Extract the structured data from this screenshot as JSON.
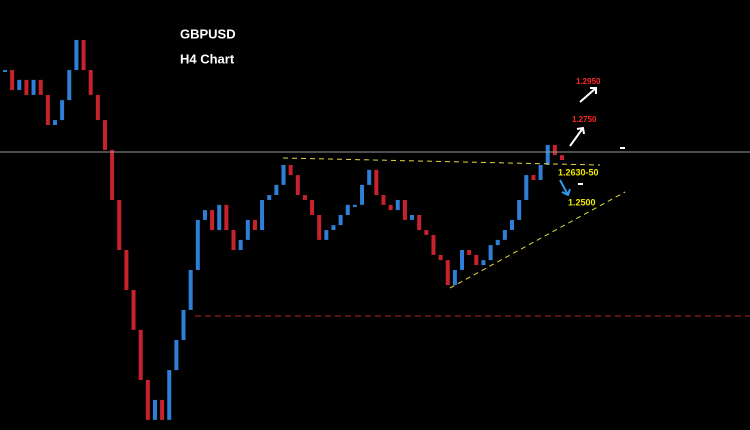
{
  "chart_data": {
    "type": "candlestick",
    "title": "GBPUSD",
    "subtitle": "H4 Chart",
    "ylim": [
      1.18,
      1.32
    ],
    "up_color": "#2f7fd8",
    "down_color": "#c8232c",
    "values": [
      1.2972,
      1.2907,
      1.294,
      1.2891,
      1.294,
      1.2891,
      1.2793,
      1.2809,
      1.2874,
      1.2972,
      1.307,
      1.2972,
      1.2891,
      1.2809,
      1.2712,
      1.2549,
      1.2386,
      1.2256,
      1.2126,
      1.1963,
      1.1833,
      1.1898,
      1.1833,
      1.1995,
      1.2093,
      1.2191,
      1.2321,
      1.2484,
      1.2516,
      1.2451,
      1.2533,
      1.2451,
      1.2386,
      1.2419,
      1.2484,
      1.2451,
      1.2549,
      1.2565,
      1.2598,
      1.2663,
      1.263,
      1.2565,
      1.2549,
      1.25,
      1.2419,
      1.2451,
      1.2467,
      1.25,
      1.2533,
      1.2533,
      1.2598,
      1.2647,
      1.2565,
      1.2533,
      1.2516,
      1.2549,
      1.2484,
      1.25,
      1.2451,
      1.2435,
      1.237,
      1.2353,
      1.2272,
      1.2321,
      1.2386,
      1.237,
      1.2337,
      1.2353,
      1.2402,
      1.2419,
      1.2451,
      1.2484,
      1.2549,
      1.263,
      1.2614,
      1.2663,
      1.2728,
      1.2695,
      1.2679
    ],
    "hlines": [
      {
        "value": 1.2705,
        "color": "#9a9a9a",
        "dashed": false
      },
      {
        "value": 1.2171,
        "color": "#b3262c",
        "dashed": true
      }
    ],
    "annotations": [
      {
        "text": "1.2950",
        "color": "#ff2a2a"
      },
      {
        "text": "1.2750",
        "color": "#ff2a2a"
      },
      {
        "text": "1.2630-50",
        "color": "#f2e600"
      },
      {
        "text": "1.2500",
        "color": "#f2e600"
      }
    ]
  }
}
